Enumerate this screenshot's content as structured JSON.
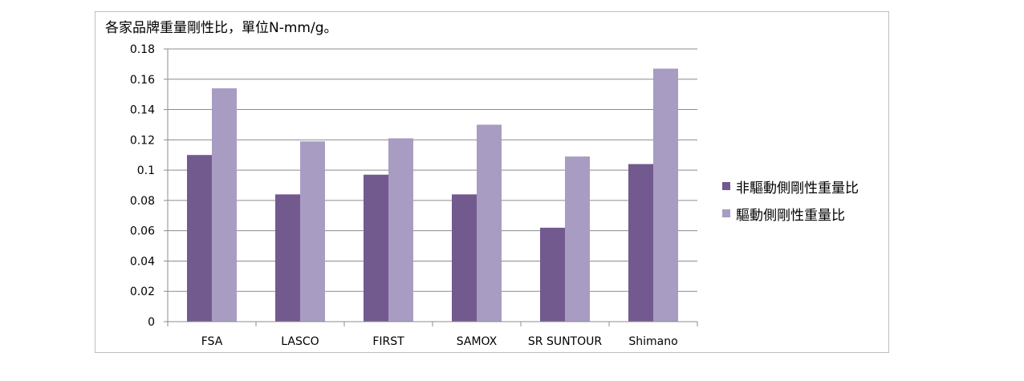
{
  "chart_data": {
    "type": "bar",
    "title": "各家品牌重量剛性比，單位N-mm/g。",
    "categories": [
      "FSA",
      "LASCO",
      "FIRST",
      "SAMOX",
      "SR SUNTOUR",
      "Shimano"
    ],
    "series": [
      {
        "name": "非驅動側剛性重量比",
        "color": "#725a8f",
        "values": [
          0.11,
          0.084,
          0.097,
          0.084,
          0.062,
          0.104
        ]
      },
      {
        "name": "驅動側剛性重量比",
        "color": "#a99cc2",
        "values": [
          0.154,
          0.119,
          0.121,
          0.13,
          0.109,
          0.167
        ]
      }
    ],
    "yticks": [
      "0",
      "0.02",
      "0.04",
      "0.06",
      "0.08",
      "0.1",
      "0.12",
      "0.14",
      "0.16",
      "0.18"
    ],
    "ylim": [
      0,
      0.18
    ],
    "grid": true,
    "legend_position": "right",
    "xlabel": "",
    "ylabel": ""
  }
}
